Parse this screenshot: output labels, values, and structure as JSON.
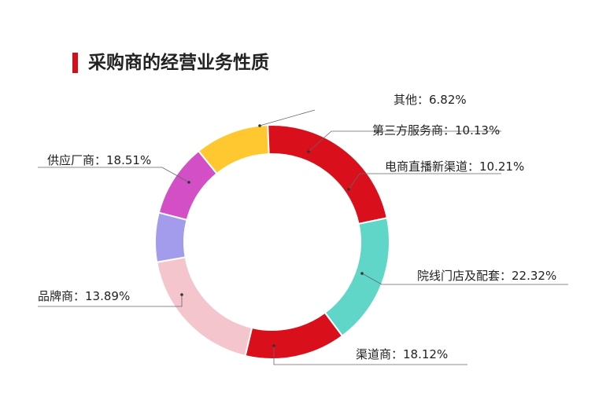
{
  "title": "采购商的经营业务性质",
  "chart_data": {
    "type": "pie",
    "donut": true,
    "legend": "none",
    "slices": [
      {
        "label": "其他：6.82%",
        "value": 6.82,
        "color": "#a39ced"
      },
      {
        "label": "第三方服务商：10.13%",
        "value": 10.13,
        "color": "#d24fc5"
      },
      {
        "label": "电商直播新渠道：10.21%",
        "value": 10.21,
        "color": "#ffc831"
      },
      {
        "label": "院线门店及配套：22.32%",
        "value": 22.32,
        "color": "#d9101c"
      },
      {
        "label": "渠道商：18.12%",
        "value": 18.12,
        "color": "#5fd6c8"
      },
      {
        "label": "品牌商：13.89%",
        "value": 13.89,
        "color": "#d9101c"
      },
      {
        "label": "供应厂商：18.51%",
        "value": 18.51,
        "color": "#f4c5cd"
      }
    ]
  }
}
